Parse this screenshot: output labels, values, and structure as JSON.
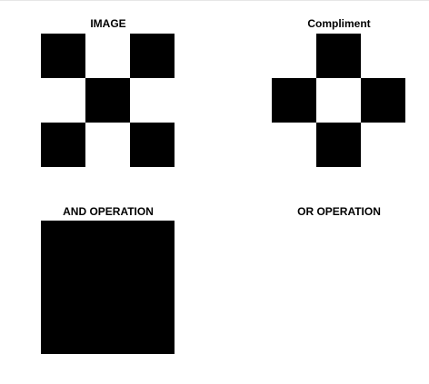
{
  "colors": {
    "on": "#000000",
    "off": "#ffffff"
  },
  "panels": [
    {
      "title": "IMAGE",
      "grid": [
        [
          1,
          0,
          1
        ],
        [
          0,
          1,
          0
        ],
        [
          1,
          0,
          1
        ]
      ]
    },
    {
      "title": "Compliment",
      "grid": [
        [
          0,
          1,
          0
        ],
        [
          1,
          0,
          1
        ],
        [
          0,
          1,
          0
        ]
      ]
    },
    {
      "title": "AND OPERATION",
      "grid": [
        [
          1,
          1,
          1
        ],
        [
          1,
          1,
          1
        ],
        [
          1,
          1,
          1
        ]
      ]
    },
    {
      "title": "OR OPERATION",
      "grid": [
        [
          0,
          0,
          0
        ],
        [
          0,
          0,
          0
        ],
        [
          0,
          0,
          0
        ]
      ]
    }
  ]
}
